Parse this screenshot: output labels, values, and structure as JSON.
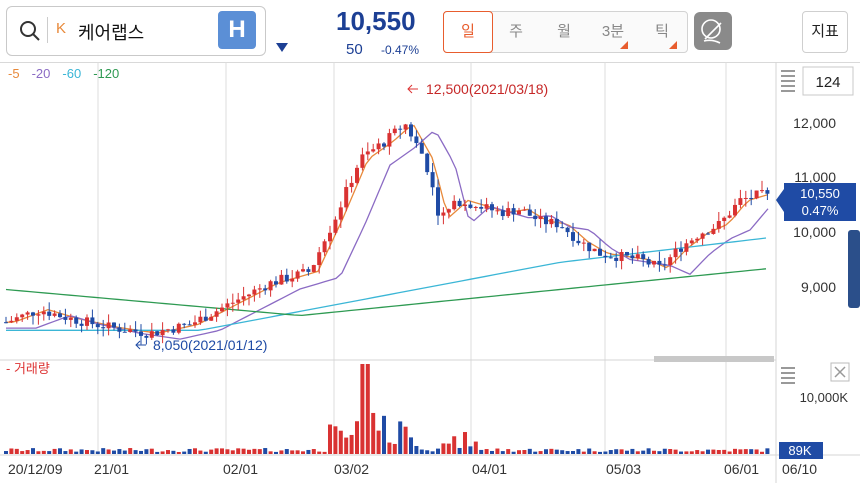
{
  "search": {
    "market_badge": "K",
    "stock_name": "케어랩스",
    "h_button": "H"
  },
  "quote": {
    "price": "10,550",
    "change": "50",
    "change_rate": "-0.47%"
  },
  "period_tabs": [
    {
      "label": "일",
      "active": true
    },
    {
      "label": "주",
      "active": false
    },
    {
      "label": "월",
      "active": false
    },
    {
      "label": "3분",
      "active": false
    },
    {
      "label": "틱",
      "active": false
    }
  ],
  "indicator_button": "지표",
  "legend": [
    {
      "label": "5",
      "color": "#e8893a"
    },
    {
      "label": "20",
      "color": "#8b6bc4"
    },
    {
      "label": "60",
      "color": "#3bb6d6"
    },
    {
      "label": "120",
      "color": "#2e9a52"
    }
  ],
  "zoom_value": "124",
  "price_axis_labels": [
    "12,000",
    "11,000",
    "10,000",
    "9,000"
  ],
  "current_price_tag": {
    "price": "10,550",
    "rate": "0.47%"
  },
  "annotations": {
    "high": "12,500(2021/03/18)",
    "low": "8,050(2021/01/12)"
  },
  "volume": {
    "label": "거래량",
    "axis_label": "10,000K",
    "current_tag": "89K"
  },
  "date_labels": [
    "20/12/09",
    "21/01",
    "02/01",
    "03/02",
    "04/01",
    "05/03",
    "06/01",
    "06/10"
  ],
  "colors": {
    "up": "#d93232",
    "down": "#1f4ba5",
    "price_blue": "#1c3f94",
    "accent": "#e85d2e"
  }
}
